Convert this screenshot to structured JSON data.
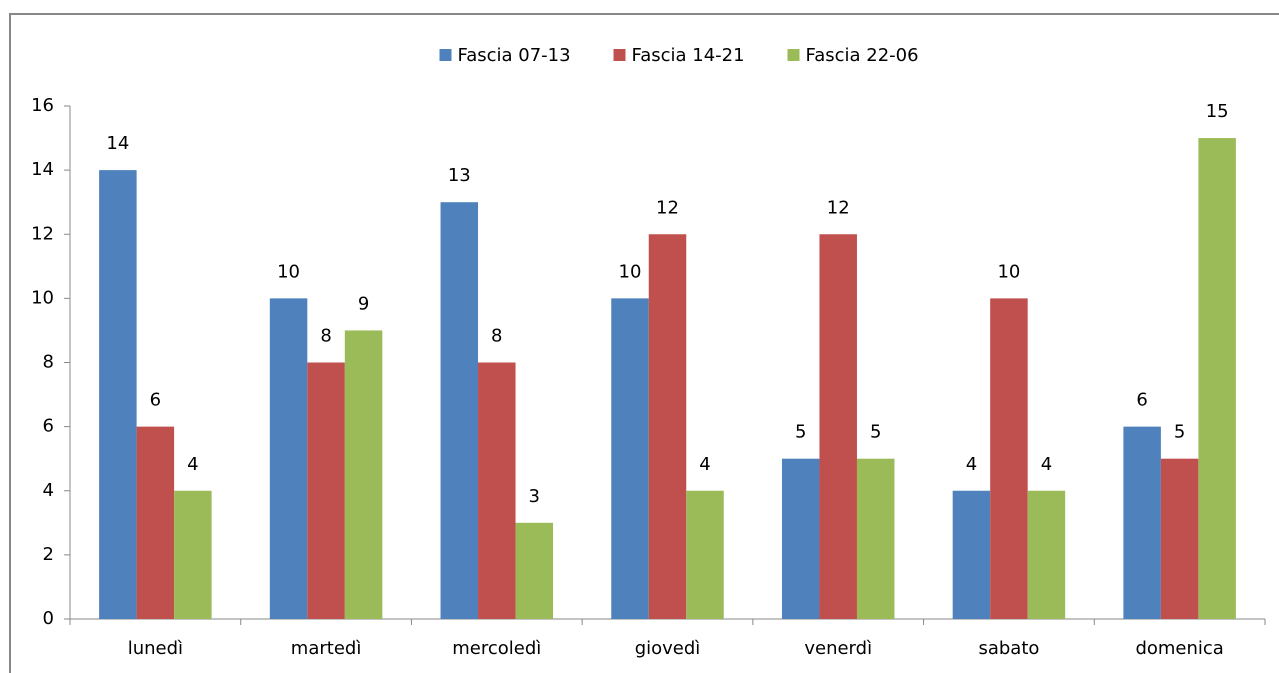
{
  "chart_data": {
    "type": "bar",
    "legend": "top",
    "grid": false,
    "categories": [
      "lunedì",
      "martedì",
      "mercoledì",
      "giovedì",
      "venerdì",
      "sabato",
      "domenica"
    ],
    "series": [
      {
        "name": "Fascia 07-13",
        "color": "#4f81bd",
        "values": [
          14,
          10,
          13,
          10,
          5,
          4,
          6
        ]
      },
      {
        "name": "Fascia 14-21",
        "color": "#c0504d",
        "values": [
          6,
          8,
          8,
          12,
          12,
          10,
          5
        ]
      },
      {
        "name": "Fascia 22-06",
        "color": "#9bbb59",
        "values": [
          4,
          9,
          3,
          4,
          5,
          4,
          15
        ]
      }
    ],
    "ylim": [
      0,
      16
    ],
    "yticks": [
      0,
      2,
      4,
      6,
      8,
      10,
      12,
      14,
      16
    ]
  }
}
